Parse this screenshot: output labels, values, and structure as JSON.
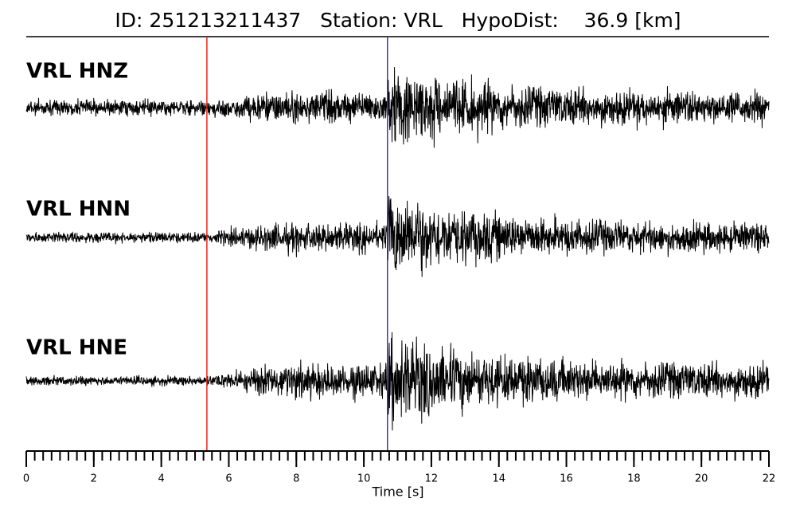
{
  "chart_data": {
    "type": "seismogram",
    "title": "ID: 251213211437   Station: VRL   HypoDist:    36.9 [km]",
    "xlabel": "Time [s]",
    "xlim": [
      0,
      22
    ],
    "xticks": [
      0,
      2,
      4,
      6,
      8,
      10,
      12,
      14,
      16,
      18,
      20,
      22
    ],
    "xminor_step": 0.25,
    "label_color": "#4a9a00",
    "trace_color": "#000000",
    "series": [
      {
        "name": "VRL HNZ"
      },
      {
        "name": "VRL HNN"
      },
      {
        "name": "VRL HNE"
      }
    ],
    "picks": [
      {
        "time": 5.35,
        "color": "#e8241c"
      },
      {
        "time": 10.7,
        "color": "#3a3aa8"
      }
    ]
  }
}
